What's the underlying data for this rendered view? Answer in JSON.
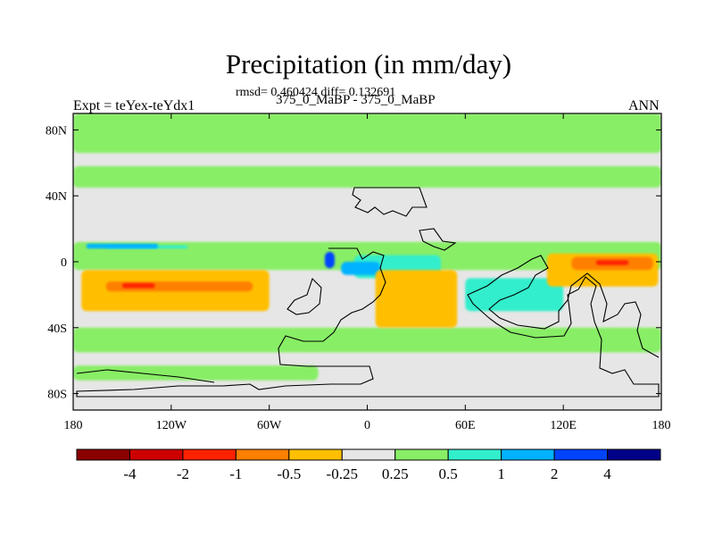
{
  "chart_data": {
    "type": "heatmap",
    "title": "Precipitation (in mm/day)",
    "stats_text": "rmsd= 0.460424 diff= 0.132691",
    "subtitle": "375_0_MaBP - 375_0_MaBP",
    "left_label": "Expt = teYex-teYdx1",
    "right_label": "ANN",
    "x_axis": {
      "range": [
        -180,
        180
      ],
      "ticks": [
        {
          "value": -180,
          "label": "180"
        },
        {
          "value": -120,
          "label": "120W"
        },
        {
          "value": -60,
          "label": "60W"
        },
        {
          "value": 0,
          "label": "0"
        },
        {
          "value": 60,
          "label": "60E"
        },
        {
          "value": 120,
          "label": "120E"
        },
        {
          "value": 180,
          "label": "180"
        }
      ]
    },
    "y_axis": {
      "range": [
        -90,
        90
      ],
      "ticks": [
        {
          "value": 80,
          "label": "80N"
        },
        {
          "value": 40,
          "label": "40N"
        },
        {
          "value": 0,
          "label": "0"
        },
        {
          "value": -40,
          "label": "40S"
        },
        {
          "value": -80,
          "label": "80S"
        }
      ]
    },
    "colorbar": {
      "colors": [
        "#8b0000",
        "#cc0000",
        "#ff2200",
        "#ff7f00",
        "#ffbf00",
        "#e6e6e6",
        "#88ee66",
        "#33eecc",
        "#00b2ff",
        "#0044ff",
        "#000088"
      ],
      "labels": [
        "-4",
        "-2",
        "-1",
        "-0.5",
        "-0.25",
        "0.25",
        "0.5",
        "1",
        "2",
        "4"
      ]
    },
    "background_value_range": [
      -0.25,
      0.25
    ],
    "fields": [
      {
        "level": "0.25 to 0.5",
        "lon": [
          -180,
          180
        ],
        "lat": [
          66,
          90
        ]
      },
      {
        "level": "0.25 to 0.5",
        "lon": [
          -180,
          180
        ],
        "lat": [
          45,
          58
        ]
      },
      {
        "level": "0.25 to 0.5",
        "lon": [
          -180,
          180
        ],
        "lat": [
          -5,
          12
        ]
      },
      {
        "level": "0.25 to 0.5",
        "lon": [
          -180,
          180
        ],
        "lat": [
          -55,
          -40
        ]
      },
      {
        "level": "0.25 to 0.5",
        "lon": [
          -180,
          -30
        ],
        "lat": [
          -72,
          -63
        ]
      },
      {
        "level": "0.5 to 1",
        "lon": [
          -160,
          -110
        ],
        "lat": [
          8,
          10
        ]
      },
      {
        "level": "0.5 to 1",
        "lon": [
          -8,
          45
        ],
        "lat": [
          -10,
          4
        ]
      },
      {
        "level": "0.5 to 1",
        "lon": [
          60,
          120
        ],
        "lat": [
          -30,
          -10
        ]
      },
      {
        "level": "1 to 2",
        "lon": [
          -172,
          -128
        ],
        "lat": [
          8,
          11
        ]
      },
      {
        "level": "1 to 2",
        "lon": [
          -16,
          8
        ],
        "lat": [
          -8,
          0
        ]
      },
      {
        "level": "2 to 4",
        "lon": [
          -26,
          -20
        ],
        "lat": [
          -4,
          6
        ]
      },
      {
        "level": "-0.5 to -0.25",
        "lon": [
          -175,
          -60
        ],
        "lat": [
          -30,
          -5
        ]
      },
      {
        "level": "-0.5 to -0.25",
        "lon": [
          5,
          55
        ],
        "lat": [
          -40,
          -5
        ]
      },
      {
        "level": "-0.5 to -0.25",
        "lon": [
          110,
          178
        ],
        "lat": [
          -15,
          5
        ]
      },
      {
        "level": "-1 to -0.5",
        "lon": [
          -160,
          -70
        ],
        "lat": [
          -18,
          -12
        ]
      },
      {
        "level": "-1 to -0.5",
        "lon": [
          125,
          175
        ],
        "lat": [
          -5,
          3
        ]
      },
      {
        "level": "-2 to -1",
        "lon": [
          -150,
          -130
        ],
        "lat": [
          -16,
          -13
        ]
      },
      {
        "level": "-2 to -1",
        "lon": [
          140,
          160
        ],
        "lat": [
          -2,
          1
        ]
      }
    ]
  }
}
